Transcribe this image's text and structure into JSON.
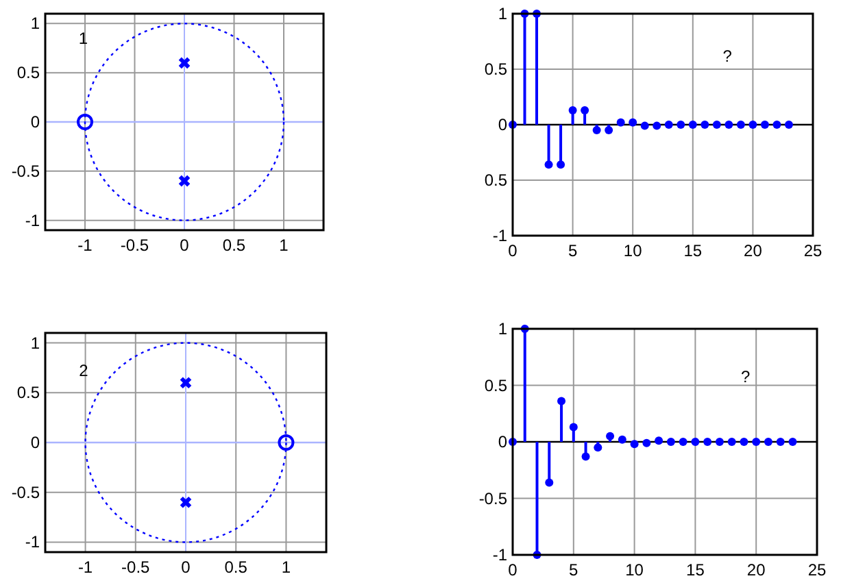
{
  "chart_data": [
    {
      "type": "scatter",
      "annotations": [
        "1"
      ],
      "xlim": [
        -1.4,
        1.4
      ],
      "ylim": [
        -1.1,
        1.1
      ],
      "xticks": [
        -1,
        -0.5,
        0,
        0.5,
        1
      ],
      "yticks": [
        -1,
        -0.5,
        0,
        0.5,
        1
      ],
      "grid": true,
      "ref_lines": [
        {
          "axis": "x",
          "value": 0,
          "color": "#aab4ff"
        },
        {
          "axis": "y",
          "value": 0,
          "color": "#aab4ff"
        }
      ],
      "series": [
        {
          "color": "#0000ff",
          "marker": "cross",
          "x": [
            0,
            0
          ],
          "values": [
            0.6,
            -0.6
          ]
        },
        {
          "color": "#0000ff",
          "marker": "circle",
          "x": [
            -1
          ],
          "values": [
            0
          ]
        }
      ]
    },
    {
      "type": "lollipop",
      "annotations": [
        "?"
      ],
      "xlim": [
        0,
        25
      ],
      "ylim": [
        -1,
        1
      ],
      "xticks": [
        0,
        5,
        10,
        15,
        20,
        25
      ],
      "yticks": [
        -1,
        {
          "value": -0.5,
          "label": "0.5"
        },
        0,
        0.5,
        1
      ],
      "grid": true,
      "ref_lines": [
        {
          "axis": "y",
          "value": 0,
          "color": "#000000"
        }
      ],
      "series": [
        {
          "color": "#0000ff",
          "x": [
            0,
            1,
            2,
            3,
            4,
            5,
            6,
            7,
            8,
            9,
            10,
            11,
            12,
            13,
            14,
            15,
            16,
            17,
            18,
            19,
            20,
            21,
            22,
            23
          ],
          "values": [
            0,
            1,
            1,
            -0.36,
            -0.36,
            0.13,
            0.13,
            -0.05,
            -0.05,
            0.02,
            0.02,
            -0.01,
            -0.01,
            0,
            0,
            0,
            0,
            0,
            0,
            0,
            0,
            0,
            0,
            0
          ]
        }
      ]
    },
    {
      "type": "scatter",
      "annotations": [
        "2"
      ],
      "xlim": [
        -1.4,
        1.4
      ],
      "ylim": [
        -1.1,
        1.1
      ],
      "xticks": [
        -1,
        -0.5,
        0,
        0.5,
        1
      ],
      "yticks": [
        -1,
        -0.5,
        0,
        0.5,
        1
      ],
      "grid": true,
      "ref_lines": [
        {
          "axis": "x",
          "value": 0,
          "color": "#aab4ff"
        },
        {
          "axis": "y",
          "value": 0,
          "color": "#aab4ff"
        }
      ],
      "series": [
        {
          "color": "#0000ff",
          "marker": "cross",
          "x": [
            0,
            0
          ],
          "values": [
            0.6,
            -0.6
          ]
        },
        {
          "color": "#0000ff",
          "marker": "circle",
          "x": [
            1
          ],
          "values": [
            0
          ]
        }
      ]
    },
    {
      "type": "lollipop",
      "annotations": [
        "?"
      ],
      "xlim": [
        0,
        25
      ],
      "ylim": [
        -1,
        1
      ],
      "xticks": [
        0,
        5,
        10,
        15,
        20,
        25
      ],
      "yticks": [
        -1,
        -0.5,
        0,
        0.5,
        1
      ],
      "grid": true,
      "ref_lines": [
        {
          "axis": "y",
          "value": 0,
          "color": "#000000"
        }
      ],
      "series": [
        {
          "color": "#0000ff",
          "x": [
            0,
            1,
            2,
            3,
            4,
            5,
            6,
            7,
            8,
            9,
            10,
            11,
            12,
            13,
            14,
            15,
            16,
            17,
            18,
            19,
            20,
            21,
            22,
            23
          ],
          "values": [
            0,
            1,
            -1,
            -0.36,
            0.36,
            0.13,
            -0.13,
            -0.05,
            0.05,
            0.02,
            -0.02,
            -0.01,
            0.01,
            0,
            0,
            0,
            0,
            0,
            0,
            0,
            0,
            0,
            0,
            0
          ]
        }
      ]
    }
  ]
}
